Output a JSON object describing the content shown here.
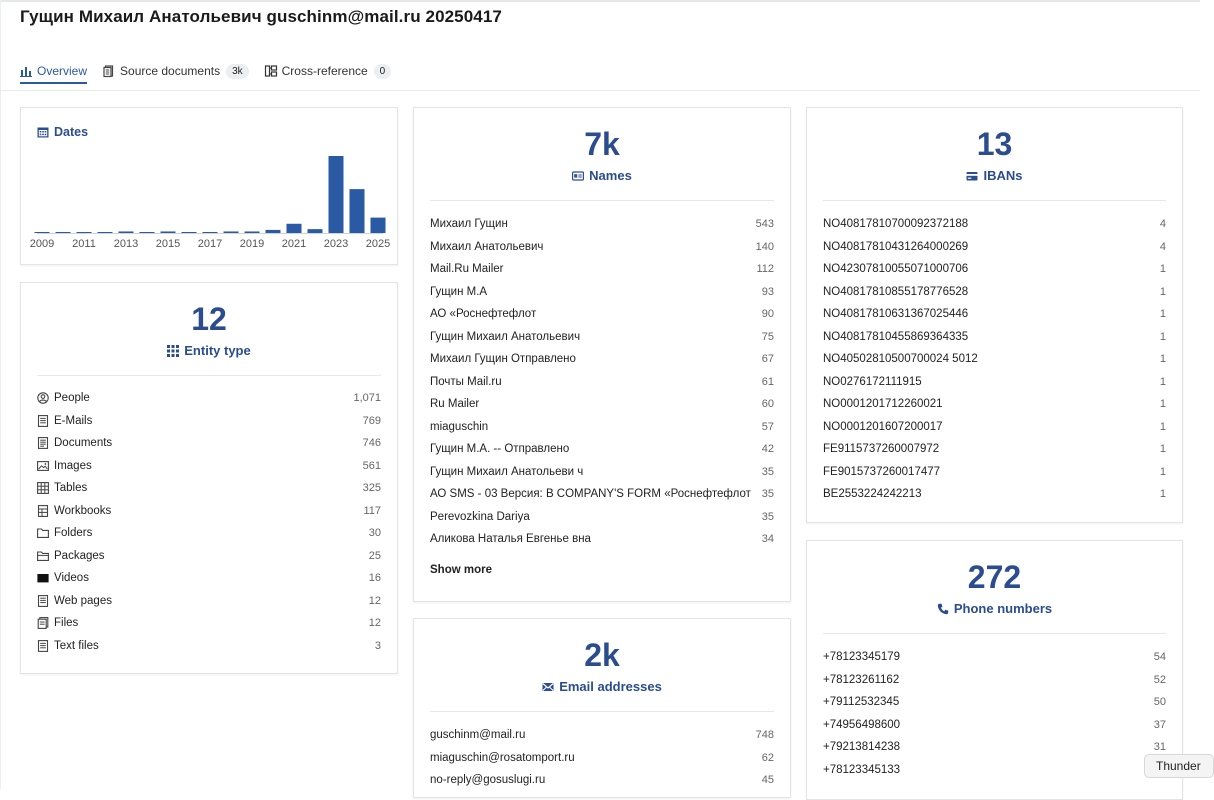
{
  "page": {
    "title": "Гущин Михаил Анатольевич guschinm@mail.ru 20250417"
  },
  "tabs": [
    {
      "label": "Overview",
      "icon": "bar-chart-icon",
      "active": true
    },
    {
      "label": "Source documents",
      "icon": "document-icon",
      "count": "3k"
    },
    {
      "label": "Cross-reference",
      "icon": "cross-reference-icon",
      "count": "0"
    }
  ],
  "dates": {
    "title": "Dates",
    "icon": "calendar-icon",
    "chart_data": {
      "type": "bar",
      "x": [
        2009,
        2010,
        2011,
        2012,
        2013,
        2014,
        2015,
        2016,
        2017,
        2018,
        2019,
        2020,
        2021,
        2022,
        2023,
        2024,
        2025
      ],
      "values": [
        1,
        1,
        1,
        1,
        2,
        1,
        2,
        1,
        1,
        2,
        2,
        4,
        12,
        5,
        100,
        57,
        20
      ],
      "xticks": [
        "2009",
        "2011",
        "2013",
        "2015",
        "2017",
        "2019",
        "2021",
        "2023",
        "2025"
      ],
      "color": "#2b5aa5"
    }
  },
  "entity_types": {
    "total": "12",
    "title": "Entity type",
    "icon": "grid-icon",
    "items": [
      {
        "label": "People",
        "count": "1,071",
        "icon": "person-icon"
      },
      {
        "label": "E-Mails",
        "count": "769",
        "icon": "email-document-icon"
      },
      {
        "label": "Documents",
        "count": "746",
        "icon": "document-icon"
      },
      {
        "label": "Images",
        "count": "561",
        "icon": "image-icon"
      },
      {
        "label": "Tables",
        "count": "325",
        "icon": "table-icon"
      },
      {
        "label": "Workbooks",
        "count": "117",
        "icon": "workbook-icon"
      },
      {
        "label": "Folders",
        "count": "30",
        "icon": "folder-icon"
      },
      {
        "label": "Packages",
        "count": "25",
        "icon": "package-icon"
      },
      {
        "label": "Videos",
        "count": "16",
        "icon": "video-icon"
      },
      {
        "label": "Web pages",
        "count": "12",
        "icon": "web-page-icon"
      },
      {
        "label": "Files",
        "count": "12",
        "icon": "files-icon"
      },
      {
        "label": "Text files",
        "count": "3",
        "icon": "text-file-icon"
      }
    ]
  },
  "names": {
    "total": "7k",
    "title": "Names",
    "icon": "id-card-icon",
    "items": [
      {
        "label": "Михаил Гущин",
        "count": "543"
      },
      {
        "label": "Михаил Анатольевич",
        "count": "140"
      },
      {
        "label": "Mail.Ru Mailer",
        "count": "112"
      },
      {
        "label": "Гущин М.А",
        "count": "93"
      },
      {
        "label": "АО «Роснефтефлот",
        "count": "90"
      },
      {
        "label": "Гущин Михаил Анатольевич",
        "count": "75"
      },
      {
        "label": "Михаил Гущин Отправлено",
        "count": "67"
      },
      {
        "label": "Почты Mail.ru",
        "count": "61"
      },
      {
        "label": "Ru Mailer",
        "count": "60"
      },
      {
        "label": "miaguschin",
        "count": "57"
      },
      {
        "label": "Гущин М.А. -- Отправлено",
        "count": "42"
      },
      {
        "label": "Гущин Михаил Анатольеви ч",
        "count": "35"
      },
      {
        "label": "АО SMS - 03 Версия: В COMPANY'S FORM «Роснефтефлот",
        "count": "35"
      },
      {
        "label": "Perevozkina Dariya",
        "count": "35"
      },
      {
        "label": "Аликова Наталья Евгенье вна",
        "count": "34"
      }
    ],
    "show_more": "Show more"
  },
  "emails": {
    "total": "2k",
    "title": "Email addresses",
    "icon": "envelope-icon",
    "items": [
      {
        "label": "guschinm@mail.ru",
        "count": "748"
      },
      {
        "label": "miaguschin@rosatomport.ru",
        "count": "62"
      },
      {
        "label": "no-reply@gosuslugi.ru",
        "count": "45"
      }
    ]
  },
  "ibans": {
    "total": "13",
    "title": "IBANs",
    "icon": "credit-card-icon",
    "items": [
      {
        "label": "NO40817810700092372188",
        "count": "4"
      },
      {
        "label": "NO40817810431264000269",
        "count": "4"
      },
      {
        "label": "NO42307810055071000706",
        "count": "1"
      },
      {
        "label": "NO40817810855178776528",
        "count": "1"
      },
      {
        "label": "NO40817810631367025446",
        "count": "1"
      },
      {
        "label": "NO40817810455869364335",
        "count": "1"
      },
      {
        "label": "NO40502810500700024 5012",
        "count": "1"
      },
      {
        "label": "NO0276172111915",
        "count": "1"
      },
      {
        "label": "NO0001201712260021",
        "count": "1"
      },
      {
        "label": "NO0001201607200017",
        "count": "1"
      },
      {
        "label": "FE9115737260007972",
        "count": "1"
      },
      {
        "label": "FE9015737260017477",
        "count": "1"
      },
      {
        "label": "BE2553224242213",
        "count": "1"
      }
    ]
  },
  "phones": {
    "total": "272",
    "title": "Phone numbers",
    "icon": "phone-icon",
    "items": [
      {
        "label": "+78123345179",
        "count": "54"
      },
      {
        "label": "+78123261162",
        "count": "52"
      },
      {
        "label": "+79112532345",
        "count": "50"
      },
      {
        "label": "+74956498600",
        "count": "37"
      },
      {
        "label": "+79213814238",
        "count": "31"
      },
      {
        "label": "+78123345133",
        "count": ""
      }
    ]
  },
  "tooltip": {
    "text": "Thunder"
  },
  "colors": {
    "accent": "#2b5aa5",
    "heading": "#2b4c8f"
  }
}
